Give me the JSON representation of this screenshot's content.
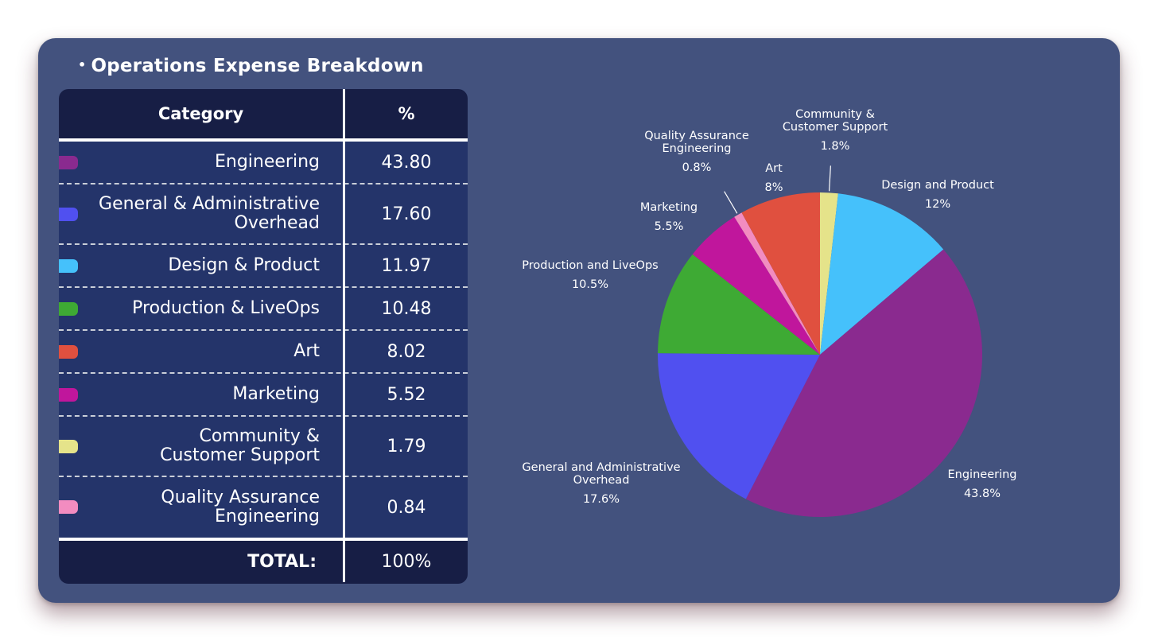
{
  "header": {
    "title": "Operations Expense Breakdown"
  },
  "table": {
    "col_category": "Category",
    "col_percent": "%",
    "rows": [
      {
        "label_lines": [
          "Engineering"
        ],
        "value": "43.80",
        "color": "#8a2a8f"
      },
      {
        "label_lines": [
          "General & Administrative",
          "Overhead"
        ],
        "value": "17.60",
        "color": "#5050f0"
      },
      {
        "label_lines": [
          "Design & Product"
        ],
        "value": "11.97",
        "color": "#45c1fb"
      },
      {
        "label_lines": [
          "Production & LiveOps"
        ],
        "value": "10.48",
        "color": "#3eaa34"
      },
      {
        "label_lines": [
          "Art"
        ],
        "value": "8.02",
        "color": "#e0503f"
      },
      {
        "label_lines": [
          "Marketing"
        ],
        "value": "5.52",
        "color": "#c0169c"
      },
      {
        "label_lines": [
          "Community &",
          "Customer Support"
        ],
        "value": "1.79",
        "color": "#e5e38a"
      },
      {
        "label_lines": [
          "Quality Assurance",
          "Engineering"
        ],
        "value": "0.84",
        "color": "#f28cc0"
      }
    ],
    "total_label": "TOTAL:",
    "total_value": "100%"
  },
  "chart_data": {
    "type": "pie",
    "slices": [
      {
        "label_lines": [
          "Community &",
          "Customer Support"
        ],
        "pct_label": "1.8%",
        "value": 1.79,
        "color": "#e5e38a"
      },
      {
        "label_lines": [
          "Design and Product"
        ],
        "pct_label": "12%",
        "value": 11.97,
        "color": "#45c1fb"
      },
      {
        "label_lines": [
          "Engineering"
        ],
        "pct_label": "43.8%",
        "value": 43.8,
        "color": "#8a2a8f"
      },
      {
        "label_lines": [
          "General and Administrative",
          "Overhead"
        ],
        "pct_label": "17.6%",
        "value": 17.6,
        "color": "#5050f0"
      },
      {
        "label_lines": [
          "Production and LiveOps"
        ],
        "pct_label": "10.5%",
        "value": 10.48,
        "color": "#3eaa34"
      },
      {
        "label_lines": [
          "Marketing"
        ],
        "pct_label": "5.5%",
        "value": 5.52,
        "color": "#c0169c"
      },
      {
        "label_lines": [
          "Quality Assurance",
          "Engineering"
        ],
        "pct_label": "0.8%",
        "value": 0.84,
        "color": "#f28cc0"
      },
      {
        "label_lines": [
          "Art"
        ],
        "pct_label": "8%",
        "value": 8.02,
        "color": "#e0503f"
      }
    ]
  }
}
